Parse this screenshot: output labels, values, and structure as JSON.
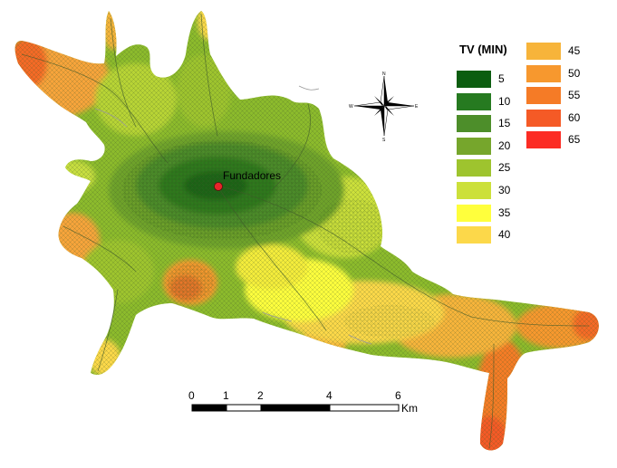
{
  "map": {
    "place_label": "Fundadores",
    "colors": {
      "base": "#8cbb2c",
      "core_dark": "#2d6e1a",
      "core_mid": "#4b8a22",
      "road_lines": "#3f5a2a",
      "river": "#9a9a9a",
      "marker": "#e8252a"
    }
  },
  "legend": {
    "title": "TV (MIN)",
    "items": [
      {
        "label": "5",
        "color": "#0c5d10"
      },
      {
        "label": "10",
        "color": "#267a20"
      },
      {
        "label": "15",
        "color": "#4d8e2a"
      },
      {
        "label": "20",
        "color": "#76a62c"
      },
      {
        "label": "25",
        "color": "#9ec42e"
      },
      {
        "label": "30",
        "color": "#cce03a"
      },
      {
        "label": "35",
        "color": "#ffff3c"
      },
      {
        "label": "40",
        "color": "#fcd84a"
      },
      {
        "label": "45",
        "color": "#f7b43a"
      },
      {
        "label": "50",
        "color": "#f7982e"
      },
      {
        "label": "55",
        "color": "#f57b26"
      },
      {
        "label": "60",
        "color": "#f55a26"
      },
      {
        "label": "65",
        "color": "#fc2c24"
      }
    ]
  },
  "compass": {
    "n": "N",
    "s": "S",
    "e": "E",
    "w": "W"
  },
  "scale_bar": {
    "ticks": [
      "0",
      "1",
      "2",
      "4",
      "6"
    ],
    "unit": "Km"
  }
}
